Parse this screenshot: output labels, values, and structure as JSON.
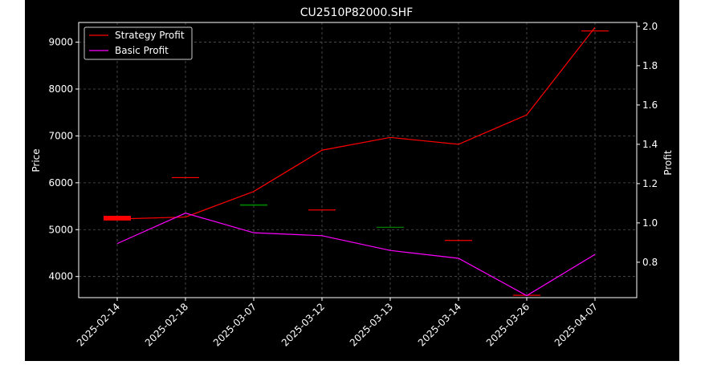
{
  "colors": {
    "figure_bg": "#000000",
    "axes_edge": "#ffffff",
    "grid": "#555555",
    "strategy_line": "#ff0000",
    "basic_line": "#ff00ff",
    "candle_up": "#ff0000",
    "candle_down": "#008000"
  },
  "chart_data": {
    "type": "line",
    "title": "CU2510P82000.SHF",
    "categories": [
      "2025-02-14",
      "2025-02-18",
      "2025-03-07",
      "2025-03-12",
      "2025-03-13",
      "2025-03-14",
      "2025-03-26",
      "2025-04-07"
    ],
    "y_left": {
      "label": "Price",
      "range": [
        3550,
        9420
      ],
      "ticks": [
        4000,
        5000,
        6000,
        7000,
        8000,
        9000
      ]
    },
    "y_right": {
      "label": "Profit",
      "range": [
        0.62,
        2.02
      ],
      "ticks": [
        "0.8",
        "1.0",
        "1.2",
        "1.4",
        "1.6",
        "1.8",
        "2.0"
      ]
    },
    "grid": true,
    "legend": {
      "position": "top-left",
      "entries": [
        "Strategy Profit",
        "Basic Profit"
      ]
    },
    "candles": [
      {
        "date": "2025-02-14",
        "open": 5195,
        "close": 5295,
        "high": 5295,
        "low": 5195
      },
      {
        "date": "2025-02-18",
        "open": 6120,
        "close": 6120,
        "high": 6120,
        "low": 6120
      },
      {
        "date": "2025-03-07",
        "open": 5540,
        "close": 5510,
        "high": 5540,
        "low": 5510
      },
      {
        "date": "2025-03-12",
        "open": 5430,
        "close": 5430,
        "high": 5430,
        "low": 5430
      },
      {
        "date": "2025-03-13",
        "open": 5060,
        "close": 5040,
        "high": 5060,
        "low": 5040
      },
      {
        "date": "2025-03-14",
        "open": 4780,
        "close": 4780,
        "high": 4780,
        "low": 4780
      },
      {
        "date": "2025-03-26",
        "open": 3610,
        "close": 3610,
        "high": 3610,
        "low": 3610
      },
      {
        "date": "2025-04-07",
        "open": 9250,
        "close": 9250,
        "high": 9250,
        "low": 9250
      }
    ],
    "series": [
      {
        "name": "Strategy Profit",
        "axis": "right",
        "values": [
          1.02,
          1.03,
          1.16,
          1.37,
          1.435,
          1.4,
          1.55,
          1.995
        ]
      },
      {
        "name": "Basic Profit",
        "axis": "right",
        "values": [
          0.895,
          1.05,
          0.95,
          0.935,
          0.86,
          0.82,
          0.63,
          0.84
        ]
      }
    ]
  }
}
